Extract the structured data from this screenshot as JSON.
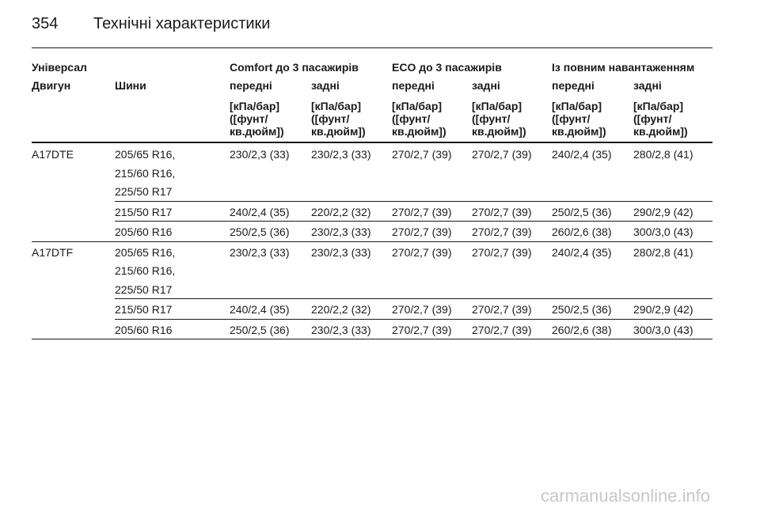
{
  "header": {
    "page": "354",
    "title": "Технічні характеристики"
  },
  "table": {
    "groups": [
      "Універсал",
      "Comfort до 3 пасажирів",
      "ECO до 3 пасажирів",
      "Із повним навантаженням"
    ],
    "columns": [
      "Двигун",
      "Шини",
      "передні",
      "задні",
      "передні",
      "задні",
      "передні",
      "задні"
    ],
    "units": [
      [
        "[кПа/бар]",
        "([фунт/",
        "кв.дюйм])"
      ],
      [
        "[кПа/бар]",
        "([фунт/",
        "кв.дюйм])"
      ],
      [
        "[кПа/бар]",
        "([фунт/",
        "кв.дюйм])"
      ],
      [
        "[кПа/бар]",
        "([фунт/",
        "кв.дюйм])"
      ],
      [
        "[кПа/бар]",
        "([фунт/",
        "кв.дюйм])"
      ],
      [
        "[кПа/бар]",
        "([фунт/",
        "кв.дюйм])"
      ]
    ],
    "engines": [
      {
        "name": "A17DTE",
        "rows": [
          {
            "tyres": [
              "205/65 R16,",
              "215/60 R16,",
              "225/50 R17"
            ],
            "values": [
              "230/2,3 (33)",
              "230/2,3 (33)",
              "270/2,7 (39)",
              "270/2,7 (39)",
              "240/2,4 (35)",
              "280/2,8 (41)"
            ]
          },
          {
            "tyres": [
              "215/50 R17"
            ],
            "values": [
              "240/2,4 (35)",
              "220/2,2 (32)",
              "270/2,7 (39)",
              "270/2,7 (39)",
              "250/2,5 (36)",
              "290/2,9 (42)"
            ]
          },
          {
            "tyres": [
              "205/60 R16"
            ],
            "values": [
              "250/2,5 (36)",
              "230/2,3 (33)",
              "270/2,7 (39)",
              "270/2,7 (39)",
              "260/2,6 (38)",
              "300/3,0 (43)"
            ]
          }
        ]
      },
      {
        "name": "A17DTF",
        "rows": [
          {
            "tyres": [
              "205/65 R16,",
              "215/60 R16,",
              "225/50 R17"
            ],
            "values": [
              "230/2,3 (33)",
              "230/2,3 (33)",
              "270/2,7 (39)",
              "270/2,7 (39)",
              "240/2,4 (35)",
              "280/2,8 (41)"
            ]
          },
          {
            "tyres": [
              "215/50 R17"
            ],
            "values": [
              "240/2,4 (35)",
              "220/2,2 (32)",
              "270/2,7 (39)",
              "270/2,7 (39)",
              "250/2,5 (36)",
              "290/2,9 (42)"
            ]
          },
          {
            "tyres": [
              "205/60 R16"
            ],
            "values": [
              "250/2,5 (36)",
              "230/2,3 (33)",
              "270/2,7 (39)",
              "270/2,7 (39)",
              "260/2,6 (38)",
              "300/3,0 (43)"
            ]
          }
        ]
      }
    ]
  },
  "footer": {
    "watermark": "carmanualsonline.info"
  }
}
